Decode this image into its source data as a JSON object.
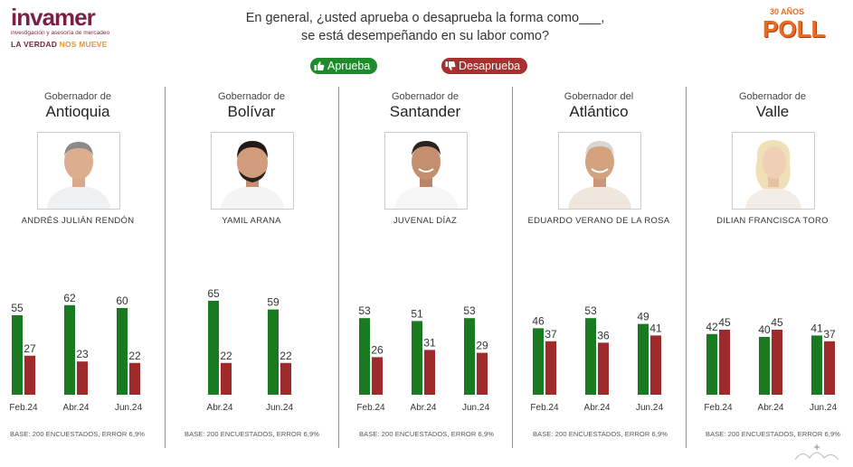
{
  "header": {
    "logo_word": "invamer",
    "logo_sub": "investigación y asesoría de mercadeo",
    "tagline_1": "LA VERDAD",
    "tagline_2": "NOS MUEVE",
    "question_line1": "En general, ¿usted aprueba o desaprueba la forma como___,",
    "question_line2": "se está desempeñando en su labor como?",
    "badge_years": "30 AÑOS",
    "badge_poll": "POLL"
  },
  "legend": {
    "approve": "Aprueba",
    "disapprove": "Desaprueba",
    "approve_color": "#1a7a22",
    "disapprove_color": "#9e2a2b"
  },
  "base_note": "BASE: 200 ENCUESTADOS, ERROR 6,9%",
  "panels": [
    {
      "pre": "Gobernador de",
      "state": "Antioquia",
      "name": "ANDRÉS JULIÁN RENDÓN"
    },
    {
      "pre": "Gobernador de",
      "state": "Bolívar",
      "name": "YAMIL ARANA"
    },
    {
      "pre": "Gobernador de",
      "state": "Santander",
      "name": "JUVENAL DÍAZ"
    },
    {
      "pre": "Gobernador del",
      "state": "Atlántico",
      "name": "EDUARDO VERANO DE LA ROSA"
    },
    {
      "pre": "Gobernador de",
      "state": "Valle",
      "name": "DILIAN FRANCISCA TORO"
    }
  ],
  "chart_data": [
    {
      "type": "bar",
      "categories": [
        "Feb.24",
        "Abr.24",
        "Jun.24"
      ],
      "series": [
        {
          "name": "Aprueba",
          "values": [
            55,
            62,
            60
          ]
        },
        {
          "name": "Desaprueba",
          "values": [
            27,
            23,
            22
          ]
        }
      ]
    },
    {
      "type": "bar",
      "categories": [
        "Abr.24",
        "Jun.24"
      ],
      "series": [
        {
          "name": "Aprueba",
          "values": [
            65,
            59
          ]
        },
        {
          "name": "Desaprueba",
          "values": [
            22,
            22
          ]
        }
      ]
    },
    {
      "type": "bar",
      "categories": [
        "Feb.24",
        "Abr.24",
        "Jun.24"
      ],
      "series": [
        {
          "name": "Aprueba",
          "values": [
            53,
            51,
            53
          ]
        },
        {
          "name": "Desaprueba",
          "values": [
            26,
            31,
            29
          ]
        }
      ]
    },
    {
      "type": "bar",
      "categories": [
        "Feb.24",
        "Abr.24",
        "Jun.24"
      ],
      "series": [
        {
          "name": "Aprueba",
          "values": [
            46,
            53,
            49
          ]
        },
        {
          "name": "Desaprueba",
          "values": [
            37,
            36,
            41
          ]
        }
      ]
    },
    {
      "type": "bar",
      "categories": [
        "Feb.24",
        "Abr.24",
        "Jun.24"
      ],
      "series": [
        {
          "name": "Aprueba",
          "values": [
            42,
            40,
            41
          ]
        },
        {
          "name": "Desaprueba",
          "values": [
            45,
            45,
            37
          ]
        }
      ]
    }
  ]
}
